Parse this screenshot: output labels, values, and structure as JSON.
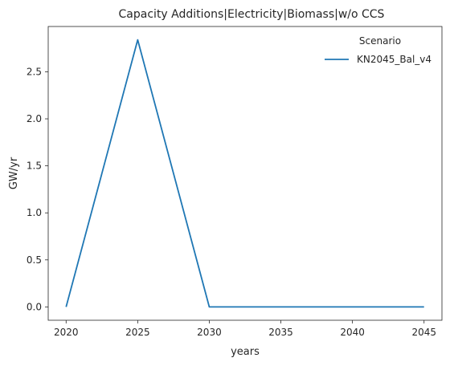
{
  "chart_data": {
    "type": "line",
    "title": "Capacity Additions|Electricity|Biomass|w/o CCS",
    "xlabel": "years",
    "ylabel": "GW/yr",
    "x": [
      2020,
      2025,
      2030,
      2035,
      2040,
      2045
    ],
    "series": [
      {
        "name": "KN2045_Bal_v4",
        "color": "#1f77b4",
        "values": [
          0.0,
          2.84,
          0.0,
          0.0,
          0.0,
          0.0
        ]
      }
    ],
    "xticks": [
      2020,
      2025,
      2030,
      2035,
      2040,
      2045
    ],
    "yticks": [
      0.0,
      0.5,
      1.0,
      1.5,
      2.0,
      2.5
    ],
    "ytick_labels": [
      "0.0",
      "0.5",
      "1.0",
      "1.5",
      "2.0",
      "2.5"
    ],
    "xlim": [
      2018.75,
      2046.25
    ],
    "ylim": [
      -0.142,
      2.982
    ],
    "legend": {
      "title": "Scenario",
      "placement": "upper-right"
    },
    "grid": false
  }
}
